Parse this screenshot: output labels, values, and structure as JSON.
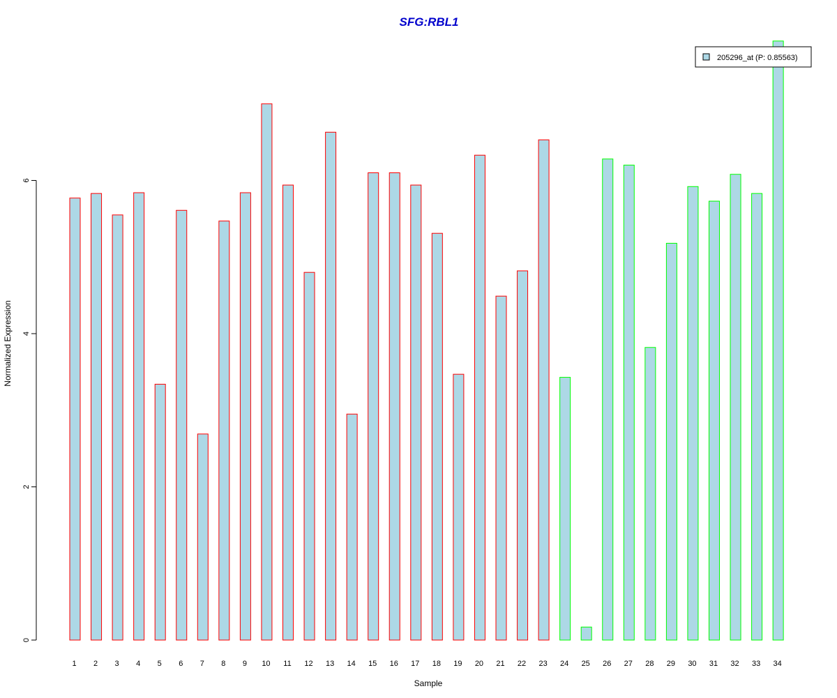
{
  "chart_data": {
    "type": "bar",
    "title": "SFG:RBL1",
    "xlabel": "Sample",
    "ylabel": "Normalized Expression",
    "categories": [
      "1",
      "2",
      "3",
      "4",
      "5",
      "6",
      "7",
      "8",
      "9",
      "10",
      "11",
      "12",
      "13",
      "14",
      "15",
      "16",
      "17",
      "18",
      "19",
      "20",
      "21",
      "22",
      "23",
      "24",
      "25",
      "26",
      "27",
      "28",
      "29",
      "30",
      "31",
      "32",
      "33",
      "34"
    ],
    "series": [
      {
        "name": "205296_at (P: 0.85563)",
        "values": [
          5.77,
          5.83,
          5.55,
          5.84,
          3.34,
          5.61,
          2.69,
          5.47,
          5.84,
          7.0,
          5.94,
          4.8,
          6.63,
          2.95,
          6.1,
          6.1,
          5.94,
          5.31,
          3.47,
          6.33,
          4.49,
          4.82,
          6.53,
          3.43,
          0.17,
          6.28,
          6.2,
          3.82,
          5.18,
          5.92,
          5.73,
          6.08,
          5.83,
          7.82
        ]
      }
    ],
    "groups": [
      {
        "samples": "1-23",
        "edge_color": "#ff0000"
      },
      {
        "samples": "24-34",
        "edge_color": "#00ff00"
      }
    ],
    "fill_color": "#add8e6",
    "title_color": "#0000cc",
    "ylim": [
      0,
      7.82
    ],
    "yticks": [
      0,
      2,
      4,
      6
    ],
    "legend_position": "top-right",
    "grid": false
  }
}
